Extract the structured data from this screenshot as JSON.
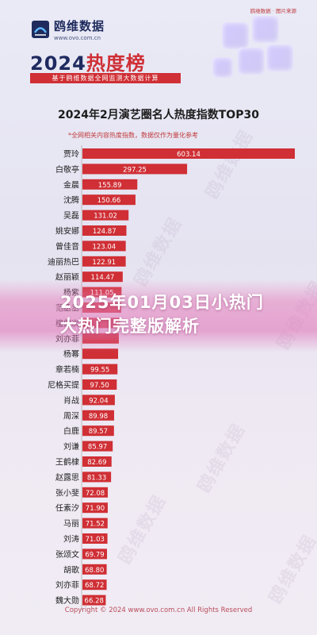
{
  "brand": {
    "name": "鸥维数据",
    "url": "www.ovo.com.cn"
  },
  "top_right_logo": "鸥维数据 · 图片来源",
  "header": {
    "title_year": "2024",
    "title_text": "热度榜",
    "subtitle": "基于鸥维数据全网监测大数据计算"
  },
  "overlay": {
    "title": "2025年01月03日小热门大热门完整版解析"
  },
  "footer": {
    "copyright": "Copyright © 2024 www.ovo.com.cn All Rights Reserved"
  },
  "colors": {
    "bar": "#cf2f35",
    "title_navy": "#1f2a60",
    "overlay_pink": "#e27fb9"
  },
  "chart_data": {
    "type": "bar",
    "orientation": "horizontal",
    "title": "2024年2月演艺圈名人热度指数TOP30",
    "note": "*全网相关内容热度指数，数据仅作为量化参考",
    "categories": [
      "贾玲",
      "白敬亭",
      "金晨",
      "沈腾",
      "吴磊",
      "姚安娜",
      "曾佳音",
      "迪丽热巴",
      "赵丽颖",
      "杨紫",
      "范丞丞",
      "檀健次",
      "刘亦菲",
      "杨幂",
      "章若楠",
      "尼格买提",
      "肖战",
      "周深",
      "白鹿",
      "刘谦",
      "王鹤棣",
      "赵露思",
      "张小斐",
      "任素汐",
      "马丽",
      "刘涛",
      "张颂文",
      "胡歌",
      "刘亦菲",
      "魏大勋"
    ],
    "values": [
      603.14,
      297.25,
      155.89,
      150.66,
      131.02,
      124.87,
      123.04,
      122.91,
      114.47,
      111.05,
      110.2,
      106.8,
      103.4,
      101.3,
      99.55,
      97.5,
      92.04,
      89.98,
      89.57,
      85.97,
      82.69,
      81.33,
      72.08,
      71.9,
      71.52,
      71.03,
      69.79,
      68.8,
      68.72,
      66.28
    ],
    "value_labels": [
      "603.14",
      "297.25",
      "155.89",
      "150.66",
      "131.02",
      "124.87",
      "123.04",
      "122.91",
      "114.47",
      "111.05",
      "",
      "",
      "",
      "",
      "99.55",
      "97.50",
      "92.04",
      "89.98",
      "89.57",
      "85.97",
      "82.69",
      "81.33",
      "72.08",
      "71.90",
      "71.52",
      "71.03",
      "69.79",
      "68.80",
      "68.72",
      "66.28"
    ],
    "xlim": [
      0,
      603.14
    ]
  }
}
